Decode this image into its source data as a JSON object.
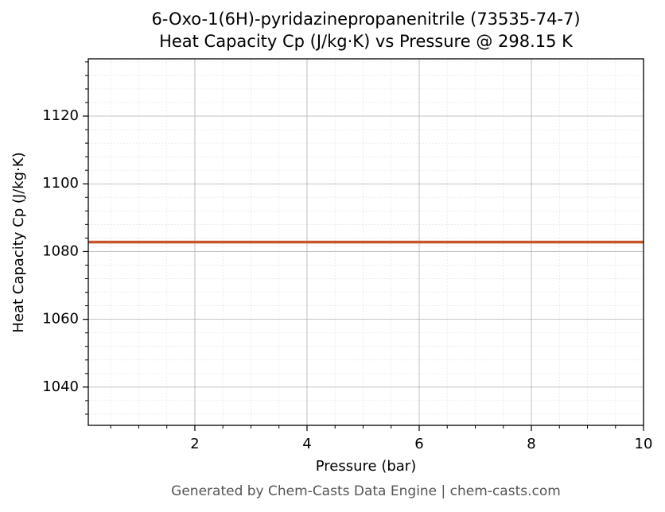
{
  "chart_data": {
    "type": "line",
    "title": "6-Oxo-1(6H)-pyridazinepropanenitrile (73535-74-7)",
    "subtitle": "Heat Capacity Cp (J/kg·K) vs Pressure @ 298.15 K",
    "x_label": "Pressure (bar)",
    "y_label": "Heat Capacity Cp (J/kg·K)",
    "footer": "Generated by Chem-Casts Data Engine | chem-casts.com",
    "x": [
      0.1,
      10
    ],
    "series": [
      {
        "name": "Cp",
        "color": "#c8562a",
        "values": [
          1082.8,
          1082.8
        ]
      }
    ],
    "xlim": [
      0.1,
      10
    ],
    "ylim": [
      1028.7,
      1136.9
    ],
    "xticks": [
      2,
      4,
      6,
      8,
      10
    ],
    "yticks": [
      1040,
      1060,
      1080,
      1100,
      1120
    ],
    "minor_xticks": [
      0.5,
      1,
      1.5,
      2.5,
      3,
      3.5,
      4.5,
      5,
      5.5,
      6.5,
      7,
      7.5,
      8.5,
      9,
      9.5
    ],
    "minor_yticks": [
      1032,
      1036,
      1044,
      1048,
      1052,
      1056,
      1064,
      1068,
      1072,
      1076,
      1084,
      1088,
      1092,
      1096,
      1104,
      1108,
      1112,
      1116,
      1124,
      1128,
      1132,
      1136
    ],
    "grid": true
  }
}
